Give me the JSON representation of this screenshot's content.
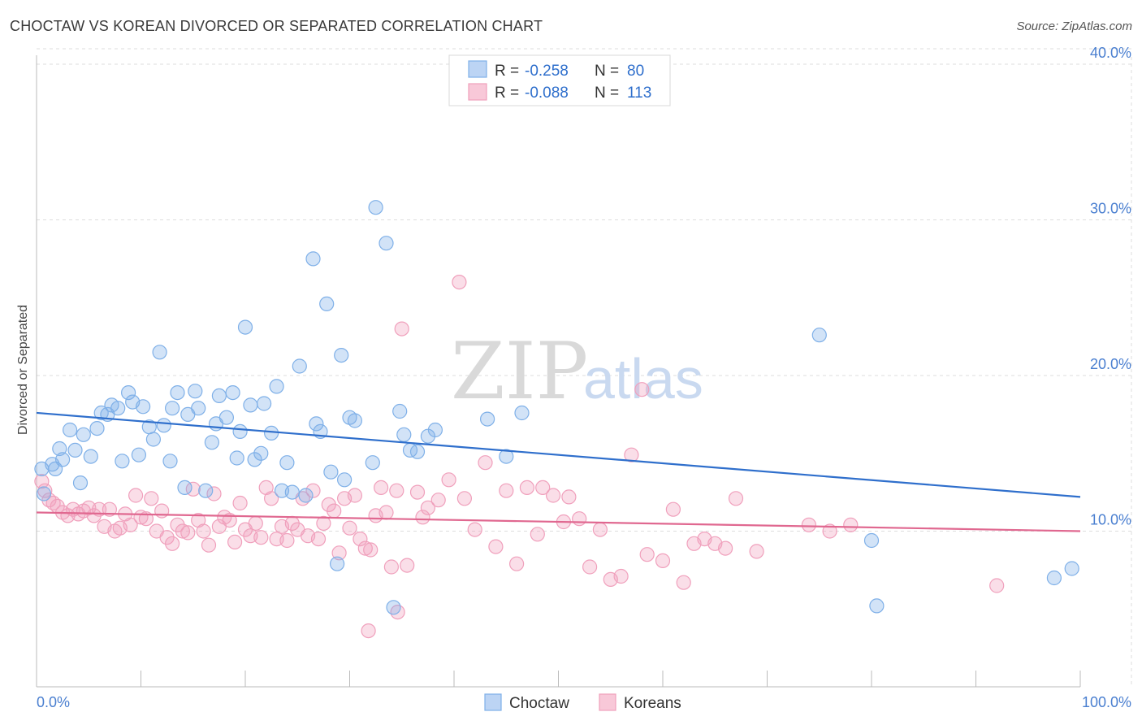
{
  "title": "CHOCTAW VS KOREAN DIVORCED OR SEPARATED CORRELATION CHART",
  "source": "Source: ZipAtlas.com",
  "watermark": {
    "zip": "ZIP",
    "atlas": "atlas"
  },
  "colors": {
    "blue": "#7fb0e8",
    "blue_line": "#2f6fcc",
    "pink": "#f0a0bc",
    "pink_line": "#e06890",
    "grid": "#dddddd"
  },
  "legend": {
    "rows": [
      {
        "r_label": "R =",
        "r_value": "-0.258",
        "n_label": "N =",
        "n_value": "80"
      },
      {
        "r_label": "R =",
        "r_value": "-0.088",
        "n_label": "N =",
        "n_value": "113"
      }
    ]
  },
  "chart_data": {
    "type": "scatter",
    "title": "CHOCTAW VS KOREAN DIVORCED OR SEPARATED CORRELATION CHART",
    "xlabel": "",
    "ylabel": "Divorced or Separated",
    "xlim": [
      0,
      100
    ],
    "ylim": [
      0,
      40
    ],
    "x_tick_labels": [
      "0.0%",
      "100.0%"
    ],
    "y_ticks": [
      10,
      20,
      30,
      40
    ],
    "y_tick_labels": [
      "10.0%",
      "20.0%",
      "30.0%",
      "40.0%"
    ],
    "grid": true,
    "legend_position": "top-center",
    "series": [
      {
        "name": "Choctaw",
        "color": "#7fb0e8",
        "r": -0.258,
        "n": 80,
        "trend": {
          "x": [
            0,
            100
          ],
          "y": [
            17.6,
            12.2
          ]
        },
        "points": [
          [
            0.5,
            14.0
          ],
          [
            1.5,
            14.3
          ],
          [
            1.8,
            14.0
          ],
          [
            2.2,
            15.3
          ],
          [
            2.5,
            14.6
          ],
          [
            3.2,
            16.5
          ],
          [
            3.7,
            15.2
          ],
          [
            4.2,
            13.1
          ],
          [
            4.5,
            16.2
          ],
          [
            5.2,
            14.8
          ],
          [
            5.8,
            16.6
          ],
          [
            6.2,
            17.6
          ],
          [
            6.8,
            17.5
          ],
          [
            7.2,
            18.1
          ],
          [
            7.8,
            17.9
          ],
          [
            8.2,
            14.5
          ],
          [
            8.8,
            18.9
          ],
          [
            9.2,
            18.3
          ],
          [
            9.8,
            14.9
          ],
          [
            10.2,
            18.0
          ],
          [
            10.8,
            16.7
          ],
          [
            11.2,
            15.9
          ],
          [
            11.8,
            21.5
          ],
          [
            12.2,
            16.8
          ],
          [
            12.8,
            14.5
          ],
          [
            13.0,
            17.9
          ],
          [
            13.5,
            18.9
          ],
          [
            14.2,
            12.8
          ],
          [
            14.5,
            17.5
          ],
          [
            15.2,
            19.0
          ],
          [
            15.5,
            17.9
          ],
          [
            16.2,
            12.6
          ],
          [
            16.8,
            15.7
          ],
          [
            17.2,
            16.9
          ],
          [
            17.5,
            18.7
          ],
          [
            18.2,
            17.3
          ],
          [
            18.8,
            18.9
          ],
          [
            19.2,
            14.7
          ],
          [
            19.5,
            16.4
          ],
          [
            20.0,
            23.1
          ],
          [
            20.5,
            18.1
          ],
          [
            20.9,
            14.6
          ],
          [
            21.5,
            15.0
          ],
          [
            21.8,
            18.2
          ],
          [
            22.5,
            16.3
          ],
          [
            23.0,
            19.3
          ],
          [
            23.5,
            12.6
          ],
          [
            24.0,
            14.4
          ],
          [
            24.5,
            12.5
          ],
          [
            25.2,
            20.6
          ],
          [
            25.8,
            12.3
          ],
          [
            26.5,
            27.5
          ],
          [
            26.8,
            16.9
          ],
          [
            27.2,
            16.4
          ],
          [
            27.8,
            24.6
          ],
          [
            28.2,
            13.8
          ],
          [
            29.2,
            21.3
          ],
          [
            29.5,
            13.3
          ],
          [
            30.0,
            17.3
          ],
          [
            30.5,
            17.1
          ],
          [
            28.8,
            7.9
          ],
          [
            32.2,
            14.4
          ],
          [
            32.5,
            30.8
          ],
          [
            33.5,
            28.5
          ],
          [
            34.8,
            17.7
          ],
          [
            35.2,
            16.2
          ],
          [
            35.8,
            15.2
          ],
          [
            36.5,
            15.1
          ],
          [
            37.5,
            16.1
          ],
          [
            38.2,
            16.5
          ],
          [
            34.2,
            5.1
          ],
          [
            43.2,
            17.2
          ],
          [
            45.0,
            14.8
          ],
          [
            46.5,
            17.6
          ],
          [
            75.0,
            22.6
          ],
          [
            80.0,
            9.4
          ],
          [
            80.5,
            5.2
          ],
          [
            97.5,
            7.0
          ],
          [
            99.2,
            7.6
          ],
          [
            0.7,
            12.4
          ]
        ]
      },
      {
        "name": "Koreans",
        "color": "#f0a0bc",
        "r": -0.088,
        "n": 113,
        "trend": {
          "x": [
            0,
            100
          ],
          "y": [
            11.2,
            10.0
          ]
        },
        "points": [
          [
            0.5,
            13.2
          ],
          [
            0.8,
            12.6
          ],
          [
            1.2,
            12.0
          ],
          [
            1.6,
            11.8
          ],
          [
            2.0,
            11.6
          ],
          [
            2.5,
            11.2
          ],
          [
            3.0,
            11.0
          ],
          [
            3.5,
            11.4
          ],
          [
            4.0,
            11.1
          ],
          [
            4.5,
            11.3
          ],
          [
            5.0,
            11.5
          ],
          [
            5.5,
            11.0
          ],
          [
            6.0,
            11.4
          ],
          [
            6.5,
            10.3
          ],
          [
            7.0,
            11.4
          ],
          [
            7.5,
            10.0
          ],
          [
            8.0,
            10.2
          ],
          [
            8.5,
            11.1
          ],
          [
            9.0,
            10.4
          ],
          [
            9.5,
            12.3
          ],
          [
            10.0,
            10.9
          ],
          [
            10.5,
            10.8
          ],
          [
            11.0,
            12.1
          ],
          [
            11.5,
            10.0
          ],
          [
            12.0,
            11.3
          ],
          [
            12.5,
            9.6
          ],
          [
            13.0,
            9.2
          ],
          [
            13.5,
            10.4
          ],
          [
            14.0,
            10.0
          ],
          [
            14.5,
            9.9
          ],
          [
            15.0,
            12.7
          ],
          [
            15.5,
            10.7
          ],
          [
            16.0,
            10.0
          ],
          [
            16.5,
            9.1
          ],
          [
            17.0,
            12.4
          ],
          [
            17.5,
            10.3
          ],
          [
            18.0,
            10.9
          ],
          [
            18.5,
            10.7
          ],
          [
            19.0,
            9.3
          ],
          [
            19.5,
            11.8
          ],
          [
            20.0,
            10.1
          ],
          [
            20.5,
            9.7
          ],
          [
            21.0,
            10.5
          ],
          [
            21.5,
            9.6
          ],
          [
            22.0,
            12.8
          ],
          [
            22.5,
            12.1
          ],
          [
            23.0,
            9.5
          ],
          [
            23.5,
            10.3
          ],
          [
            24.0,
            9.4
          ],
          [
            24.5,
            10.5
          ],
          [
            25.0,
            10.1
          ],
          [
            25.5,
            12.1
          ],
          [
            26.0,
            9.7
          ],
          [
            26.5,
            12.6
          ],
          [
            27.0,
            9.5
          ],
          [
            27.5,
            10.5
          ],
          [
            28.0,
            11.7
          ],
          [
            28.5,
            11.3
          ],
          [
            29.0,
            8.6
          ],
          [
            29.5,
            12.1
          ],
          [
            30.0,
            10.2
          ],
          [
            30.5,
            12.3
          ],
          [
            31.0,
            9.5
          ],
          [
            31.5,
            8.9
          ],
          [
            32.0,
            8.8
          ],
          [
            32.5,
            11.0
          ],
          [
            33.0,
            12.8
          ],
          [
            33.5,
            11.2
          ],
          [
            34.0,
            7.7
          ],
          [
            34.5,
            12.6
          ],
          [
            35.0,
            23.0
          ],
          [
            35.5,
            7.8
          ],
          [
            36.5,
            12.5
          ],
          [
            37.0,
            10.9
          ],
          [
            37.5,
            11.5
          ],
          [
            38.5,
            12.0
          ],
          [
            39.5,
            13.3
          ],
          [
            40.5,
            26.0
          ],
          [
            41.0,
            12.1
          ],
          [
            42.0,
            10.1
          ],
          [
            43.0,
            14.4
          ],
          [
            44.0,
            9.0
          ],
          [
            45.0,
            12.6
          ],
          [
            46.0,
            7.9
          ],
          [
            47.0,
            12.8
          ],
          [
            48.0,
            9.8
          ],
          [
            48.5,
            12.8
          ],
          [
            49.5,
            12.3
          ],
          [
            50.5,
            10.6
          ],
          [
            51.0,
            12.2
          ],
          [
            52.0,
            10.8
          ],
          [
            53.0,
            7.7
          ],
          [
            54.0,
            10.1
          ],
          [
            55.0,
            6.9
          ],
          [
            56.0,
            7.1
          ],
          [
            57.0,
            14.9
          ],
          [
            58.0,
            19.1
          ],
          [
            58.5,
            8.5
          ],
          [
            60.0,
            8.1
          ],
          [
            61.0,
            11.4
          ],
          [
            62.0,
            6.7
          ],
          [
            63.0,
            9.2
          ],
          [
            64.0,
            9.5
          ],
          [
            65.0,
            9.2
          ],
          [
            66.0,
            8.9
          ],
          [
            67.0,
            12.1
          ],
          [
            69.0,
            8.7
          ],
          [
            74.0,
            10.4
          ],
          [
            76.0,
            10.0
          ],
          [
            78.0,
            10.4
          ],
          [
            92.0,
            6.5
          ],
          [
            31.8,
            3.6
          ],
          [
            34.6,
            4.8
          ]
        ]
      }
    ]
  }
}
